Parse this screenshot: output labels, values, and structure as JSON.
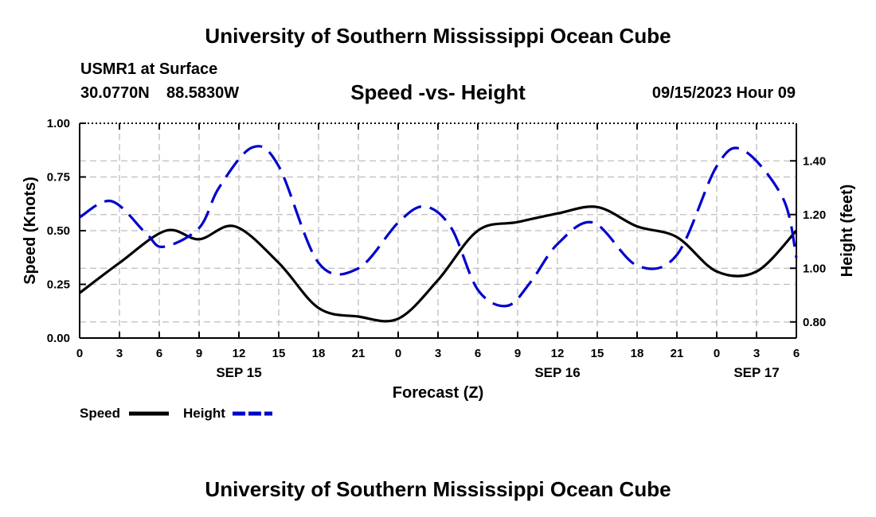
{
  "header": {
    "title": "University of Southern Mississippi Ocean Cube",
    "station": "USMR1 at Surface",
    "lat": "30.0770N",
    "lon": "88.5830W",
    "datetime": "09/15/2023 Hour 09",
    "footer_title": "University of Southern Mississippi Ocean Cube"
  },
  "chart_data": {
    "type": "line",
    "title": "Speed -vs- Height",
    "xlabel": "Forecast (Z)",
    "ylabel": "Speed (Knots)",
    "y2label": "Height (feet)",
    "x_range_hours": [
      0,
      54
    ],
    "x_tick_labels": [
      "0",
      "3",
      "6",
      "9",
      "12",
      "15",
      "18",
      "21",
      "0",
      "3",
      "6",
      "9",
      "12",
      "15",
      "18",
      "21",
      "0",
      "3",
      "6"
    ],
    "date_labels": [
      {
        "label": "SEP 15",
        "hour": 12
      },
      {
        "label": "SEP 16",
        "hour": 36
      },
      {
        "label": "SEP 17",
        "hour": 51
      }
    ],
    "ylim": [
      0,
      1.0
    ],
    "y_ticks": [
      "0.00",
      "0.25",
      "0.50",
      "0.75",
      "1.00"
    ],
    "y_tick_values": [
      0,
      0.25,
      0.5,
      0.75,
      1.0
    ],
    "y2lim": [
      0.74,
      1.54
    ],
    "y2_ticks": [
      "0.80",
      "1.00",
      "1.20",
      "1.40"
    ],
    "y2_tick_values": [
      0.8,
      1.0,
      1.2,
      1.4
    ],
    "grid": true,
    "series": [
      {
        "name": "Speed",
        "axis": "left",
        "color": "#000000",
        "dash": "solid",
        "x": [
          0,
          3,
          6.5,
          9,
          11.7,
          15,
          18,
          21,
          24,
          27,
          30,
          33,
          36,
          39,
          42,
          45,
          48,
          51,
          54
        ],
        "values": [
          0.21,
          0.35,
          0.5,
          0.46,
          0.52,
          0.35,
          0.14,
          0.1,
          0.09,
          0.27,
          0.5,
          0.54,
          0.58,
          0.61,
          0.52,
          0.47,
          0.31,
          0.31,
          0.5
        ]
      },
      {
        "name": "Height",
        "axis": "right",
        "color": "#0000cc",
        "dash": "dashed",
        "x": [
          0,
          2.4,
          5,
          6.3,
          9,
          10.5,
          13,
          15,
          18,
          21,
          24,
          26,
          28,
          30,
          32.2,
          34,
          36,
          38.7,
          42,
          45,
          48,
          50,
          53,
          54
        ],
        "values": [
          1.19,
          1.25,
          1.13,
          1.08,
          1.15,
          1.3,
          1.45,
          1.38,
          1.02,
          1.0,
          1.17,
          1.23,
          1.15,
          0.92,
          0.86,
          0.95,
          1.09,
          1.17,
          1.01,
          1.05,
          1.38,
          1.44,
          1.26,
          1.04
        ]
      }
    ]
  },
  "legend": {
    "speed_label": "Speed",
    "height_label": "Height"
  }
}
